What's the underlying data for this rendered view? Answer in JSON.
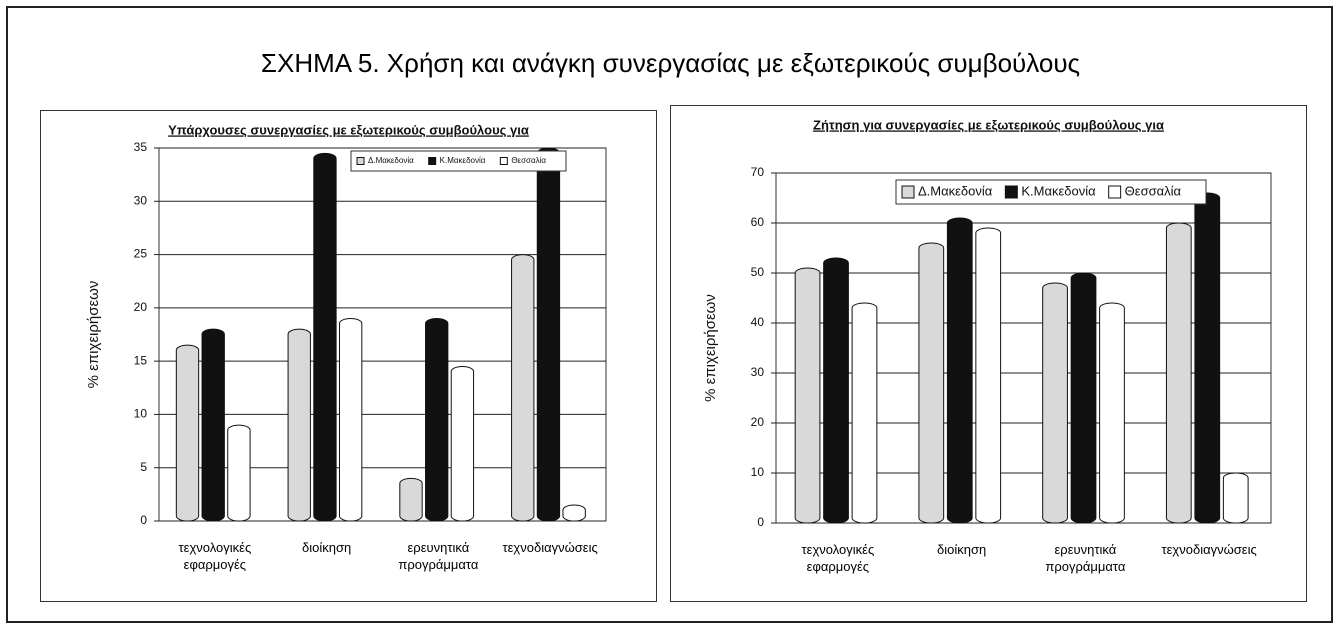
{
  "title": "ΣΧΗΜΑ 5. Χρήση και ανάγκη συνεργασίας με εξωτερικούς συμβούλους",
  "chart_data": [
    {
      "type": "bar",
      "title": "Υπάρχουσες συνεργασίες με εξωτερικούς συμβούλους για",
      "ylabel": "% επιχειρήσεων",
      "categories": [
        "τεχνολογικές εφαρμογές",
        "διοίκηση",
        "ερευνητικά προγράμματα",
        "τεχνοδιαγνώσεις"
      ],
      "series": [
        {
          "name": "Δ.Μακεδονία",
          "color": "#d9d9d9",
          "values": [
            16.5,
            18,
            4,
            25
          ]
        },
        {
          "name": "Κ.Μακεδονία",
          "color": "#111111",
          "values": [
            18,
            34.5,
            19,
            35
          ]
        },
        {
          "name": "Θεσσαλία",
          "color": "#ffffff",
          "values": [
            9,
            19,
            14.5,
            1.5
          ]
        }
      ],
      "ylim": [
        0,
        35
      ],
      "yticks": [
        0,
        5,
        10,
        15,
        20,
        25,
        30,
        35
      ],
      "grid": true,
      "legend": "top-right"
    },
    {
      "type": "bar",
      "title": "Ζήτηση για συνεργασίες με εξωτερικούς συμβούλους για",
      "ylabel": "% επιχειρήσεων",
      "categories": [
        "τεχνολογικές εφαρμογές",
        "διοίκηση",
        "ερευνητικά προγράμματα",
        "τεχνοδιαγνώσεις"
      ],
      "series": [
        {
          "name": "Δ.Μακεδονία",
          "color": "#d9d9d9",
          "values": [
            51,
            56,
            48,
            60
          ]
        },
        {
          "name": "Κ.Μακεδονία",
          "color": "#111111",
          "values": [
            53,
            61,
            50,
            66
          ]
        },
        {
          "name": "Θεσσαλία",
          "color": "#ffffff",
          "values": [
            44,
            59,
            44,
            10
          ]
        }
      ],
      "ylim": [
        0,
        70
      ],
      "yticks": [
        0,
        10,
        20,
        30,
        40,
        50,
        60,
        70
      ],
      "grid": true,
      "legend": "top"
    }
  ]
}
